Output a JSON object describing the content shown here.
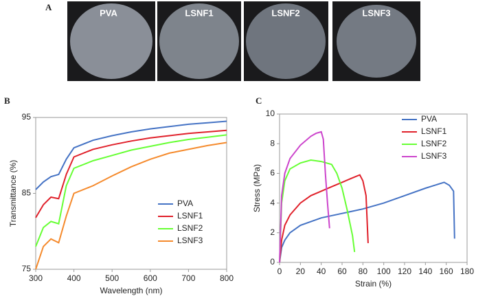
{
  "panel_a": {
    "label": "A",
    "photos": [
      "PVA",
      "LSNF1",
      "LSNF2",
      "LSNF3"
    ]
  },
  "chart_data": [
    {
      "type": "line",
      "label": "B",
      "x_label": "Wavelength (nm)",
      "y_label": "Transmittance (%)",
      "xlim": [
        300,
        800
      ],
      "xticks": [
        300,
        400,
        500,
        600,
        700,
        800
      ],
      "ylim": [
        75,
        95
      ],
      "yticks": [
        75,
        85,
        95
      ],
      "legend": "right",
      "series": [
        {
          "name": "PVA",
          "color": "#4472c4",
          "x": [
            300,
            320,
            340,
            360,
            380,
            400,
            450,
            500,
            550,
            600,
            650,
            700,
            750,
            800
          ],
          "values": [
            85.5,
            86.5,
            87.2,
            87.5,
            89.5,
            91,
            92,
            92.6,
            93.1,
            93.5,
            93.8,
            94.1,
            94.3,
            94.5
          ]
        },
        {
          "name": "LSNF1",
          "color": "#e0202a",
          "x": [
            300,
            320,
            340,
            360,
            380,
            400,
            450,
            500,
            550,
            600,
            650,
            700,
            750,
            800
          ],
          "values": [
            81.8,
            83.5,
            84.5,
            84.3,
            87.5,
            89.8,
            90.8,
            91.4,
            91.9,
            92.3,
            92.6,
            92.9,
            93.1,
            93.3
          ]
        },
        {
          "name": "LSNF2",
          "color": "#66ff33",
          "x": [
            300,
            320,
            340,
            360,
            380,
            400,
            450,
            500,
            550,
            600,
            650,
            700,
            750,
            800
          ],
          "values": [
            78,
            80.5,
            81.3,
            81,
            86,
            88.3,
            89.3,
            90,
            90.7,
            91.2,
            91.7,
            92.1,
            92.4,
            92.7
          ]
        },
        {
          "name": "LSNF3",
          "color": "#f58a2c",
          "x": [
            300,
            320,
            340,
            360,
            380,
            400,
            450,
            500,
            550,
            600,
            650,
            700,
            750,
            800
          ],
          "values": [
            75,
            78,
            79,
            78.5,
            82,
            85,
            86,
            87.3,
            88.5,
            89.5,
            90.3,
            90.8,
            91.3,
            91.7
          ]
        }
      ]
    },
    {
      "type": "line",
      "label": "C",
      "x_label": "Strain (%)",
      "y_label": "Stress (MPa)",
      "xlim": [
        0,
        180
      ],
      "xticks": [
        0,
        20,
        40,
        60,
        80,
        100,
        120,
        140,
        160,
        180
      ],
      "ylim": [
        0,
        10
      ],
      "yticks": [
        0,
        2,
        4,
        6,
        8,
        10
      ],
      "legend": "upper right",
      "series": [
        {
          "name": "PVA",
          "color": "#4472c4",
          "x": [
            0,
            2,
            5,
            10,
            20,
            40,
            60,
            80,
            100,
            120,
            140,
            158,
            163,
            167,
            168
          ],
          "values": [
            0,
            1,
            1.5,
            2,
            2.5,
            3,
            3.3,
            3.6,
            4,
            4.5,
            5,
            5.4,
            5.2,
            4.8,
            1.6
          ]
        },
        {
          "name": "LSNF1",
          "color": "#e0202a",
          "x": [
            0,
            2,
            5,
            10,
            20,
            30,
            40,
            50,
            60,
            70,
            77,
            80,
            83,
            85
          ],
          "values": [
            0,
            1.5,
            2.5,
            3.2,
            4,
            4.5,
            4.8,
            5.1,
            5.4,
            5.7,
            5.9,
            5.5,
            4.5,
            1.3
          ]
        },
        {
          "name": "LSNF2",
          "color": "#66ff33",
          "x": [
            0,
            2,
            5,
            10,
            20,
            30,
            40,
            50,
            55,
            60,
            65,
            70,
            72
          ],
          "values": [
            0,
            4,
            5.5,
            6.3,
            6.7,
            6.9,
            6.8,
            6.6,
            6,
            5,
            3.5,
            1.8,
            0.7
          ]
        },
        {
          "name": "LSNF3",
          "color": "#cc44cc",
          "x": [
            0,
            2,
            5,
            10,
            20,
            30,
            35,
            40,
            42,
            44,
            46,
            48
          ],
          "values": [
            0,
            4.5,
            6,
            7,
            7.9,
            8.5,
            8.7,
            8.8,
            8.3,
            6,
            4,
            2.3
          ]
        }
      ]
    }
  ]
}
